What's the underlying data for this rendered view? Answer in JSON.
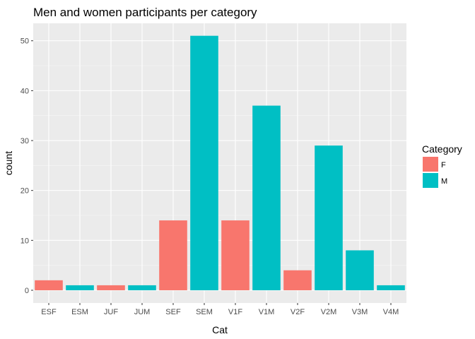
{
  "chart_data": {
    "type": "bar",
    "title": "Men and women participants per category",
    "xlabel": "Cat",
    "ylabel": "count",
    "categories": [
      "ESF",
      "ESM",
      "JUF",
      "JUM",
      "SEF",
      "SEM",
      "V1F",
      "V1M",
      "V2F",
      "V2M",
      "V3M",
      "V4M"
    ],
    "values": [
      2,
      1,
      1,
      1,
      14,
      51,
      14,
      37,
      4,
      29,
      8,
      1
    ],
    "groups": [
      "F",
      "M",
      "F",
      "M",
      "F",
      "M",
      "F",
      "M",
      "F",
      "M",
      "M",
      "M"
    ],
    "ylim": [
      0,
      53.5
    ],
    "yticks": [
      0,
      10,
      20,
      30,
      40,
      50
    ],
    "grid": true,
    "legend": {
      "title": "Category",
      "placement": "right",
      "entries": [
        {
          "label": "F",
          "color": "#F8766D"
        },
        {
          "label": "M",
          "color": "#00BFC4"
        }
      ]
    },
    "colors": {
      "F": "#F8766D",
      "M": "#00BFC4",
      "panel": "#EBEBEB",
      "grid": "#FFFFFF"
    }
  }
}
